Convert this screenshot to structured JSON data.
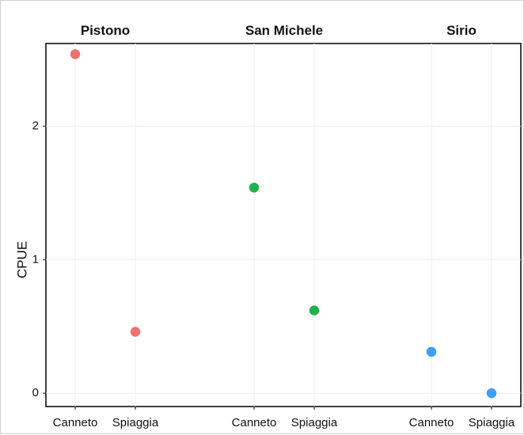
{
  "chart_data": {
    "type": "scatter",
    "facets": [
      {
        "title": "Pistono",
        "categories": [
          "Canneto",
          "Spiaggia"
        ],
        "values": [
          2.54,
          0.46
        ],
        "color": "#f07070"
      },
      {
        "title": "San Michele",
        "categories": [
          "Canneto",
          "Spiaggia"
        ],
        "values": [
          1.54,
          0.62
        ],
        "color": "#22b14c"
      },
      {
        "title": "Sirio",
        "categories": [
          "Canneto",
          "Spiaggia"
        ],
        "values": [
          0.31,
          0.0
        ],
        "color": "#3d9ef2"
      }
    ],
    "ylabel": "CPUE",
    "yticks": [
      0,
      1,
      2
    ],
    "ylim": [
      -0.1,
      2.62
    ],
    "grid": true,
    "legend": "none"
  }
}
